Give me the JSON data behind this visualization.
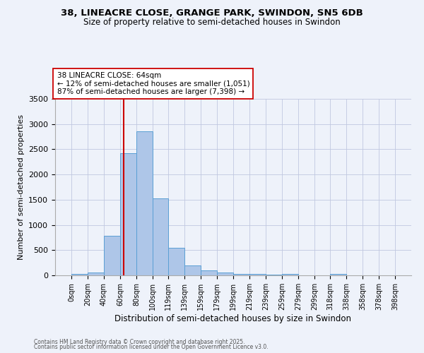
{
  "title1": "38, LINEACRE CLOSE, GRANGE PARK, SWINDON, SN5 6DB",
  "title2": "Size of property relative to semi-detached houses in Swindon",
  "xlabel": "Distribution of semi-detached houses by size in Swindon",
  "ylabel": "Number of semi-detached properties",
  "bin_edges": [
    0,
    20,
    40,
    60,
    80,
    100,
    119,
    139,
    159,
    179,
    199,
    219,
    239,
    259,
    279,
    299,
    318,
    338,
    358,
    378,
    398
  ],
  "bin_heights": [
    30,
    55,
    780,
    2420,
    2860,
    1520,
    550,
    195,
    95,
    55,
    35,
    25,
    20,
    25,
    0,
    0,
    25,
    0,
    0,
    0
  ],
  "bar_color": "#aec6e8",
  "bar_edge_color": "#5a9fd4",
  "property_size": 64,
  "annotation_title": "38 LINEACRE CLOSE: 64sqm",
  "annotation_line1": "← 12% of semi-detached houses are smaller (1,051)",
  "annotation_line2": "87% of semi-detached houses are larger (7,398) →",
  "red_line_color": "#cc0000",
  "annotation_box_color": "#ffffff",
  "annotation_box_edge": "#cc0000",
  "footnote1": "Contains HM Land Registry data © Crown copyright and database right 2025.",
  "footnote2": "Contains public sector information licensed under the Open Government Licence v3.0.",
  "background_color": "#eef2fa",
  "ylim": [
    0,
    3500
  ],
  "yticks": [
    0,
    500,
    1000,
    1500,
    2000,
    2500,
    3000,
    3500
  ]
}
